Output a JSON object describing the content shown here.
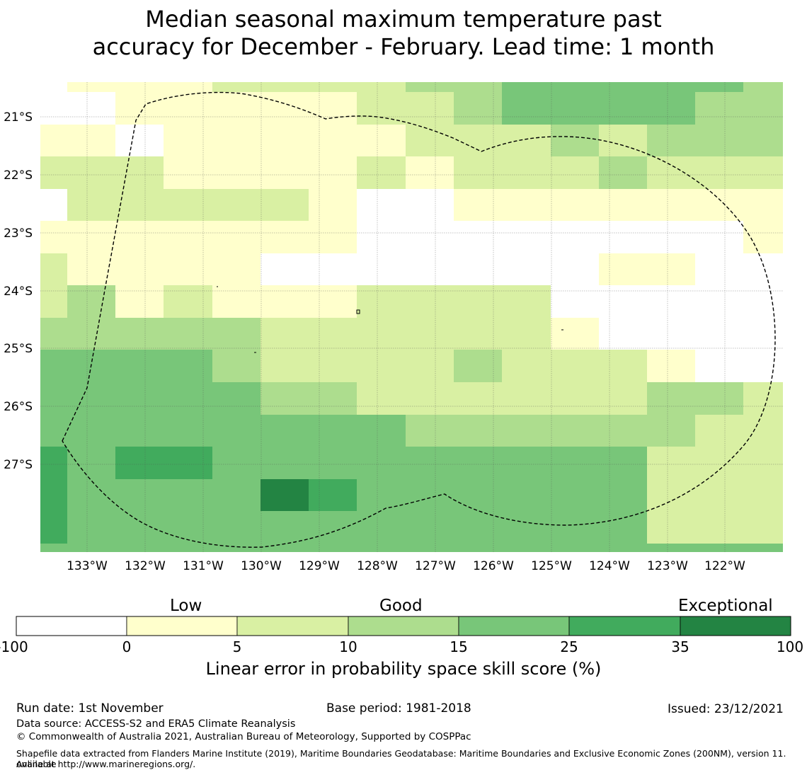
{
  "title": {
    "line1": "Median seasonal maximum temperature past",
    "line2": "accuracy for December - February. Lead time: 1 month"
  },
  "map": {
    "lon_labels": [
      "133°W",
      "132°W",
      "131°W",
      "130°W",
      "129°W",
      "128°W",
      "127°W",
      "126°W",
      "125°W",
      "124°W",
      "123°W",
      "122°W"
    ],
    "lat_labels": [
      "21°S",
      "22°S",
      "23°S",
      "24°S",
      "25°S",
      "26°S",
      "27°S"
    ],
    "boundary": "EEZ boundary (dashed)"
  },
  "colorbar": {
    "categories": {
      "low": "Low",
      "good": "Good",
      "exceptional": "Exceptional"
    },
    "ticks": [
      "-100",
      "0",
      "5",
      "10",
      "15",
      "25",
      "35",
      "100"
    ],
    "colors": [
      "#ffffff",
      "#ffffcc",
      "#d9f0a3",
      "#addd8e",
      "#78c679",
      "#41ab5d",
      "#238443"
    ],
    "label": "Linear error in probability space skill score (%)"
  },
  "footer": {
    "run_date": "Run date: 1st November",
    "base_period": "Base period: 1981-2018",
    "issued": "Issued: 23/12/2021",
    "data_source": "Data source: ACCESS-S2 and ERA5 Climate Reanalysis",
    "copyright": "© Commonwealth of Australia 2021, Australian Bureau of Meteorology, Supported by COSPPac",
    "shapefile_line1": "Shapefile data extracted from Flanders Marine Institute (2019), Maritime Boundaries Geodatabase: Maritime Boundaries and Exclusive Economic Zones (200NM), version 11. Available",
    "shapefile_line2": "online at http://www.marineregions.org/."
  }
}
